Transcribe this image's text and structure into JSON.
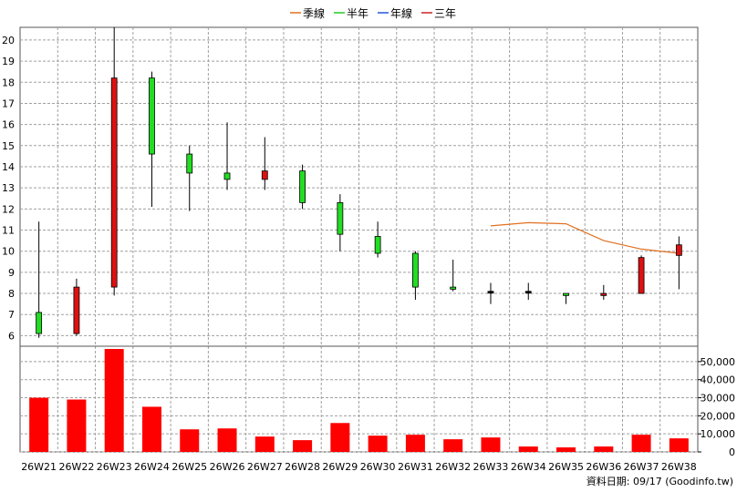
{
  "legend": [
    {
      "label": "季線",
      "color": "#e07020"
    },
    {
      "label": "半年",
      "color": "#22cc22"
    },
    {
      "label": "年線",
      "color": "#2255dd"
    },
    {
      "label": "三年",
      "color": "#cc2222"
    }
  ],
  "footer": {
    "text": "資料日期: 09/17  (Goodinfo.tw)"
  },
  "colors": {
    "up": "#dd1111",
    "down": "#22dd22",
    "volume": "#ff0000",
    "grid": "#a0a0a0",
    "ma_quarter": "#e07020"
  },
  "chart_data": {
    "type": "candlestick",
    "categories": [
      "26W21",
      "26W22",
      "26W23",
      "26W24",
      "26W25",
      "26W26",
      "26W27",
      "26W28",
      "26W29",
      "26W30",
      "26W31",
      "26W32",
      "26W33",
      "26W34",
      "26W35",
      "26W36",
      "26W37",
      "26W38"
    ],
    "price_ylim": [
      5.5,
      20.6
    ],
    "price_ticks": [
      6,
      7,
      8,
      9,
      10,
      11,
      12,
      13,
      14,
      15,
      16,
      17,
      18,
      19,
      20
    ],
    "candles": [
      {
        "open": 7.1,
        "close": 6.1,
        "high": 11.4,
        "low": 5.9
      },
      {
        "open": 6.1,
        "close": 8.3,
        "high": 8.7,
        "low": 6.0
      },
      {
        "open": 8.3,
        "close": 18.2,
        "high": 20.6,
        "low": 7.9
      },
      {
        "open": 18.2,
        "close": 14.6,
        "high": 18.5,
        "low": 12.1
      },
      {
        "open": 14.6,
        "close": 13.7,
        "high": 15.0,
        "low": 11.9
      },
      {
        "open": 13.7,
        "close": 13.4,
        "high": 16.1,
        "low": 12.9
      },
      {
        "open": 13.4,
        "close": 13.8,
        "high": 15.4,
        "low": 12.9
      },
      {
        "open": 13.8,
        "close": 12.3,
        "high": 14.1,
        "low": 12.0
      },
      {
        "open": 12.3,
        "close": 10.8,
        "high": 12.7,
        "low": 10.0
      },
      {
        "open": 10.7,
        "close": 9.9,
        "high": 11.4,
        "low": 9.7
      },
      {
        "open": 9.9,
        "close": 8.3,
        "high": 10.0,
        "low": 7.7
      },
      {
        "open": 8.3,
        "close": 8.2,
        "high": 9.6,
        "low": 8.1
      },
      {
        "open": 8.1,
        "close": 8.1,
        "high": 8.5,
        "low": 7.5
      },
      {
        "open": 8.1,
        "close": 8.1,
        "high": 8.5,
        "low": 7.7
      },
      {
        "open": 8.0,
        "close": 7.9,
        "high": 8.0,
        "low": 7.5
      },
      {
        "open": 7.9,
        "close": 8.0,
        "high": 8.4,
        "low": 7.7
      },
      {
        "open": 8.0,
        "close": 9.7,
        "high": 9.8,
        "low": 8.0
      },
      {
        "open": 9.8,
        "close": 10.3,
        "high": 10.7,
        "low": 8.2
      }
    ],
    "ma_quarter": [
      null,
      null,
      null,
      null,
      null,
      null,
      null,
      null,
      null,
      null,
      null,
      null,
      11.2,
      11.35,
      11.3,
      10.5,
      10.1,
      9.9
    ],
    "volume": [
      30000,
      29000,
      57000,
      25000,
      12500,
      13000,
      8500,
      6500,
      16000,
      9000,
      9500,
      7000,
      8000,
      3000,
      2500,
      3000,
      9500,
      7500
    ],
    "volume_ylim": [
      0,
      57000
    ],
    "volume_ticks": [
      "0",
      "10,000",
      "20,000",
      "30,000",
      "40,000",
      "50,000"
    ],
    "volume_tick_values": [
      0,
      10000,
      20000,
      30000,
      40000,
      50000
    ]
  }
}
